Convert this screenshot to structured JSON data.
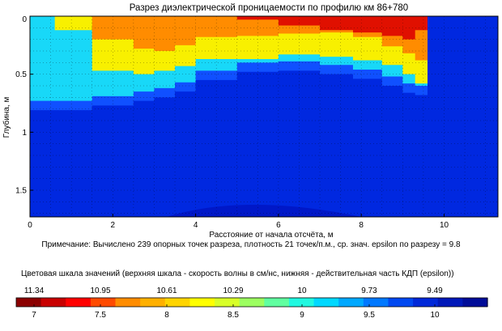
{
  "chart_data": {
    "type": "heatmap",
    "title": "Разрез диэлектрической проницаемости по профилю км 86+780",
    "xlabel": "Расстояние от начала отсчёта, м",
    "ylabel": "Глубина, м",
    "x_ticks": [
      "0",
      "2",
      "4",
      "6",
      "8",
      "10"
    ],
    "y_ticks": [
      "0",
      "0.5",
      "1",
      "1.5"
    ],
    "xlim": [
      0,
      11.3
    ],
    "ylim": [
      0,
      1.73
    ],
    "note": "Примечание: Вычислено 239 опорных точек разреза, плотность 21 точек/п.м., ср. знач. epsilon по разрезу = 9.8",
    "profile": {
      "x": [
        0,
        0.6,
        1.5,
        2.5,
        3.0,
        3.5,
        4.0,
        5.0,
        6.0,
        7.0,
        7.8,
        8.5,
        9.0,
        9.3,
        9.6,
        11.3
      ],
      "cyan_bottom": [
        0.73,
        0.73,
        0.69,
        0.65,
        0.62,
        0.57,
        0.47,
        0.4,
        0.39,
        0.42,
        0.46,
        0.52,
        0.58,
        0.6,
        0.0,
        0.0
      ],
      "yellow_bottom": [
        0.0,
        0.12,
        0.47,
        0.5,
        0.47,
        0.43,
        0.37,
        0.37,
        0.33,
        0.35,
        0.38,
        0.42,
        0.5,
        0.58,
        0.0,
        0.0
      ],
      "orange_bottom": [
        0.0,
        0.0,
        0.2,
        0.28,
        0.3,
        0.25,
        0.18,
        0.17,
        0.15,
        0.14,
        0.18,
        0.26,
        0.32,
        0.38,
        0.0,
        0.0
      ],
      "red_bottom": [
        0.0,
        0.0,
        0.0,
        0.0,
        0.0,
        0.0,
        0.0,
        0.03,
        0.08,
        0.12,
        0.14,
        0.17,
        0.2,
        0.12,
        0.0,
        0.0
      ]
    },
    "colorbar": {
      "title": "Цветовая шкала значений (верхняя шкала - скорость волны в см/нс, нижняя - действительная часть КДП (epsilon))",
      "top_labels": [
        "11.34",
        "10.95",
        "10.61",
        "10.29",
        "10",
        "9.73",
        "9.49"
      ],
      "bottom_labels": [
        "7",
        "7.5",
        "8",
        "8.5",
        "9",
        "9.5",
        "10"
      ],
      "colors": [
        "#8b0000",
        "#c80000",
        "#ff0000",
        "#ff4a00",
        "#ff8c00",
        "#ffb000",
        "#ffd400",
        "#ffff00",
        "#d8ff28",
        "#9cff60",
        "#60ffa0",
        "#20f8e0",
        "#00d8ff",
        "#00a8ff",
        "#0078ff",
        "#0048f0",
        "#0028d8",
        "#0018b8",
        "#000c98"
      ]
    },
    "colors": {
      "deep": "#0018c8",
      "base": "#0028e0",
      "blue": "#1050ff",
      "cyan": "#18d8f8",
      "yellow": "#f8f000",
      "orange": "#ff8c00",
      "red": "#e01000"
    },
    "grid": true
  }
}
